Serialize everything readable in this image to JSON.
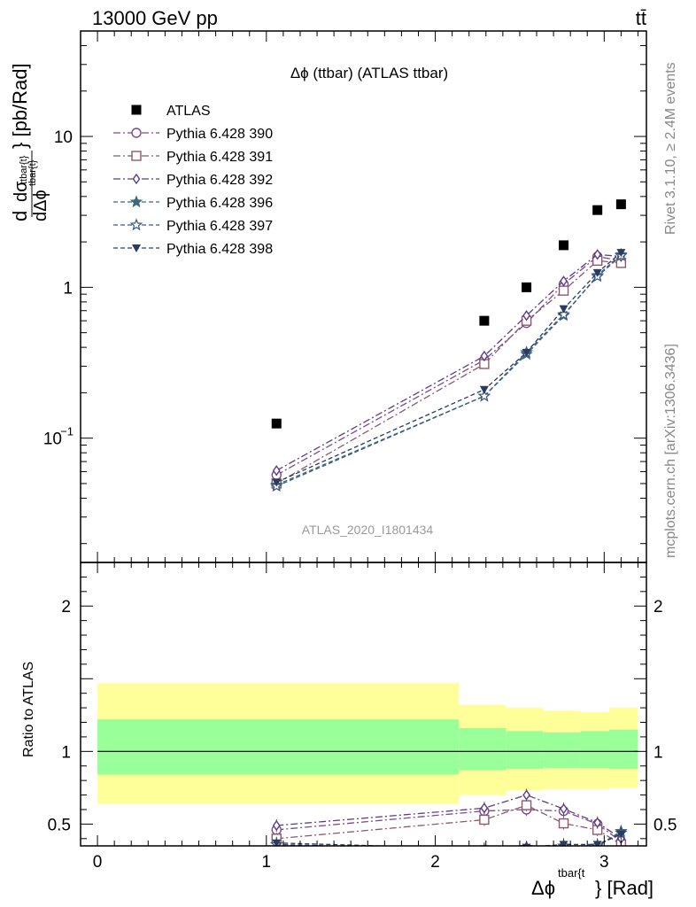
{
  "header": {
    "left": "13000 GeV pp",
    "right": "tt̄",
    "side_top": "Rivet 3.1.10, ≥ 2.4M events",
    "side_bottom": "mcplots.cern.ch [arXiv:1306.3436]",
    "watermark": "ATLAS_2020_I1801434"
  },
  "colors": {
    "data": "#000000",
    "s390": "#7b4a8b",
    "s391": "#8b5a6a",
    "s392": "#5a3d8c",
    "s396": "#3a6a80",
    "s397": "#3a5a80",
    "s398": "#2a3a60",
    "band_inner": "#99ff99",
    "band_outer": "#ffff99"
  },
  "chart_data": [
    {
      "type": "scatter",
      "title": "Δϕ (ttbar) (ATLAS ttbar)",
      "ylabel": "dσ^{ttbar{t}} / dΔϕ^{tbar{t}} [pb/Rad]",
      "yscale": "log",
      "xlim": [
        -0.1,
        3.25
      ],
      "ylim": [
        0.015,
        50
      ],
      "y_tick_labels": [
        "10^{-1}",
        "1",
        "10"
      ],
      "x": [
        1.06,
        2.29,
        2.54,
        2.76,
        2.96,
        3.1
      ],
      "series": [
        {
          "name": "ATLAS",
          "marker": "square-filled",
          "values": [
            0.125,
            0.6,
            1.0,
            1.9,
            3.25,
            3.55
          ]
        },
        {
          "name": "Pythia 6.428 390",
          "marker": "circle-open",
          "values": [
            0.057,
            0.33,
            0.58,
            1.05,
            1.6,
            1.5
          ]
        },
        {
          "name": "Pythia 6.428 391",
          "marker": "square-open",
          "values": [
            0.05,
            0.31,
            0.6,
            0.95,
            1.5,
            1.45
          ]
        },
        {
          "name": "Pythia 6.428 392",
          "marker": "diamond-open",
          "values": [
            0.061,
            0.35,
            0.65,
            1.1,
            1.65,
            1.6
          ]
        },
        {
          "name": "Pythia 6.428 396",
          "marker": "star-filled",
          "values": [
            0.049,
            0.19,
            0.36,
            0.65,
            1.2,
            1.65
          ]
        },
        {
          "name": "Pythia 6.428 397",
          "marker": "star-open",
          "values": [
            0.048,
            0.19,
            0.37,
            0.66,
            1.18,
            1.62
          ]
        },
        {
          "name": "Pythia 6.428 398",
          "marker": "triangle-down-filled",
          "values": [
            0.051,
            0.21,
            0.37,
            0.72,
            1.25,
            1.7
          ]
        }
      ]
    },
    {
      "type": "line",
      "ylabel": "Ratio to ATLAS",
      "xlabel": "Δϕ^{tbar{t}} [Rad]",
      "xlim": [
        -0.1,
        3.25
      ],
      "ylim": [
        0.35,
        2.3
      ],
      "x_tick_labels": [
        "0",
        "1",
        "2",
        "3"
      ],
      "y_tick_labels": [
        "0.5",
        "1",
        "2"
      ],
      "reference": 1,
      "bands": {
        "bin_edges": [
          0,
          2.14,
          2.42,
          2.64,
          2.86,
          3.03,
          3.2
        ],
        "inner_low": [
          0.84,
          0.87,
          0.88,
          0.885,
          0.885,
          0.88
        ],
        "inner_high": [
          1.22,
          1.16,
          1.14,
          1.13,
          1.14,
          1.15
        ],
        "outer_low": [
          0.64,
          0.7,
          0.73,
          0.74,
          0.74,
          0.75
        ],
        "outer_high": [
          1.47,
          1.32,
          1.3,
          1.28,
          1.27,
          1.3
        ]
      },
      "x": [
        1.06,
        2.29,
        2.54,
        2.76,
        2.96,
        3.1
      ],
      "series": [
        {
          "name": "Pythia 6.428 390",
          "values": [
            0.46,
            0.59,
            0.6,
            0.59,
            0.5,
            0.38
          ]
        },
        {
          "name": "Pythia 6.428 391",
          "values": [
            0.4,
            0.53,
            0.63,
            0.505,
            0.46,
            0.36
          ]
        },
        {
          "name": "Pythia 6.428 392",
          "values": [
            0.49,
            0.61,
            0.7,
            0.605,
            0.51,
            0.4
          ]
        },
        {
          "name": "Pythia 6.428 396",
          "values": [
            0.36,
            0.32,
            0.34,
            0.35,
            0.35,
            0.45
          ]
        },
        {
          "name": "Pythia 6.428 397",
          "values": [
            0.36,
            0.32,
            0.34,
            0.35,
            0.35,
            0.44
          ]
        },
        {
          "name": "Pythia 6.428 398",
          "values": [
            0.37,
            0.33,
            0.34,
            0.36,
            0.36,
            0.43
          ]
        }
      ]
    }
  ]
}
